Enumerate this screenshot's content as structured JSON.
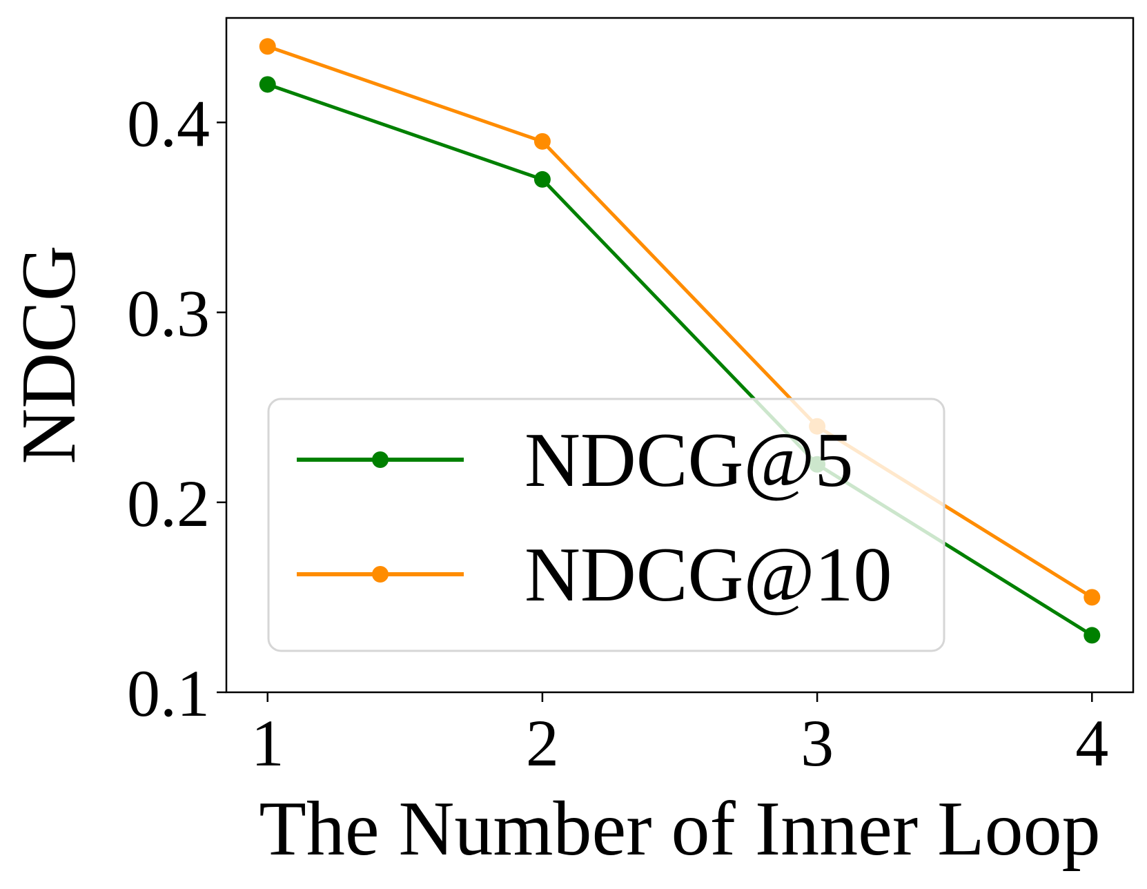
{
  "chart_data": {
    "type": "line",
    "title": "",
    "xlabel": "The Number of Inner Loop",
    "ylabel": "NDCG",
    "x": [
      1,
      2,
      3,
      4
    ],
    "xticks": [
      "1",
      "2",
      "3",
      "4"
    ],
    "xlim": [
      0.85,
      4.15
    ],
    "yticks": [
      "0.1",
      "0.2",
      "0.3",
      "0.4"
    ],
    "yticks_values": [
      0.1,
      0.2,
      0.3,
      0.4
    ],
    "ylim": [
      0.1,
      0.455
    ],
    "grid": false,
    "legend_position": "lower-left",
    "series": [
      {
        "name": "NDCG@5",
        "color": "#008000",
        "values": [
          0.42,
          0.37,
          0.22,
          0.13
        ]
      },
      {
        "name": "NDCG@10",
        "color": "#FF8C00",
        "values": [
          0.44,
          0.39,
          0.24,
          0.15
        ]
      }
    ]
  }
}
